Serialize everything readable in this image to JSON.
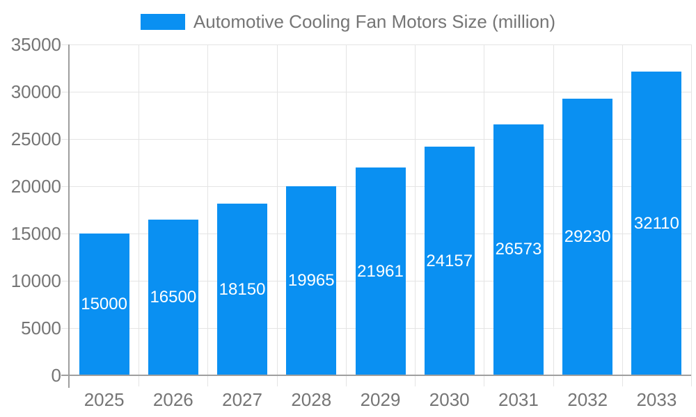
{
  "legend": {
    "position": "top",
    "items": [
      {
        "label": "Automotive Cooling Fan Motors Size (million)",
        "color": "#0a90f2"
      }
    ]
  },
  "chart_data": {
    "type": "bar",
    "title": "Automotive Cooling Fan Motors Size (million)",
    "categories": [
      "2025",
      "2026",
      "2027",
      "2028",
      "2029",
      "2030",
      "2031",
      "2032",
      "2033"
    ],
    "series": [
      {
        "name": "Automotive Cooling Fan Motors Size (million)",
        "values": [
          15000,
          16500,
          18150,
          19965,
          21961,
          24157,
          26573,
          29230,
          32110
        ]
      }
    ],
    "value_labels": "inside-middle",
    "xlabel": "",
    "ylabel": "",
    "ylim": [
      0,
      35000
    ],
    "ytick_interval": 5000,
    "ytick_labels": [
      "0",
      "5000",
      "10000",
      "15000",
      "20000",
      "25000",
      "30000",
      "35000"
    ],
    "grid": true,
    "legend_position": "top-center",
    "colors": {
      "bar": "#0a90f2",
      "bar_value_text": "#ffffff",
      "axis_text": "#757575",
      "gridline": "#e4e4e4",
      "axis_line": "#9e9e9e",
      "background": "#ffffff"
    }
  }
}
